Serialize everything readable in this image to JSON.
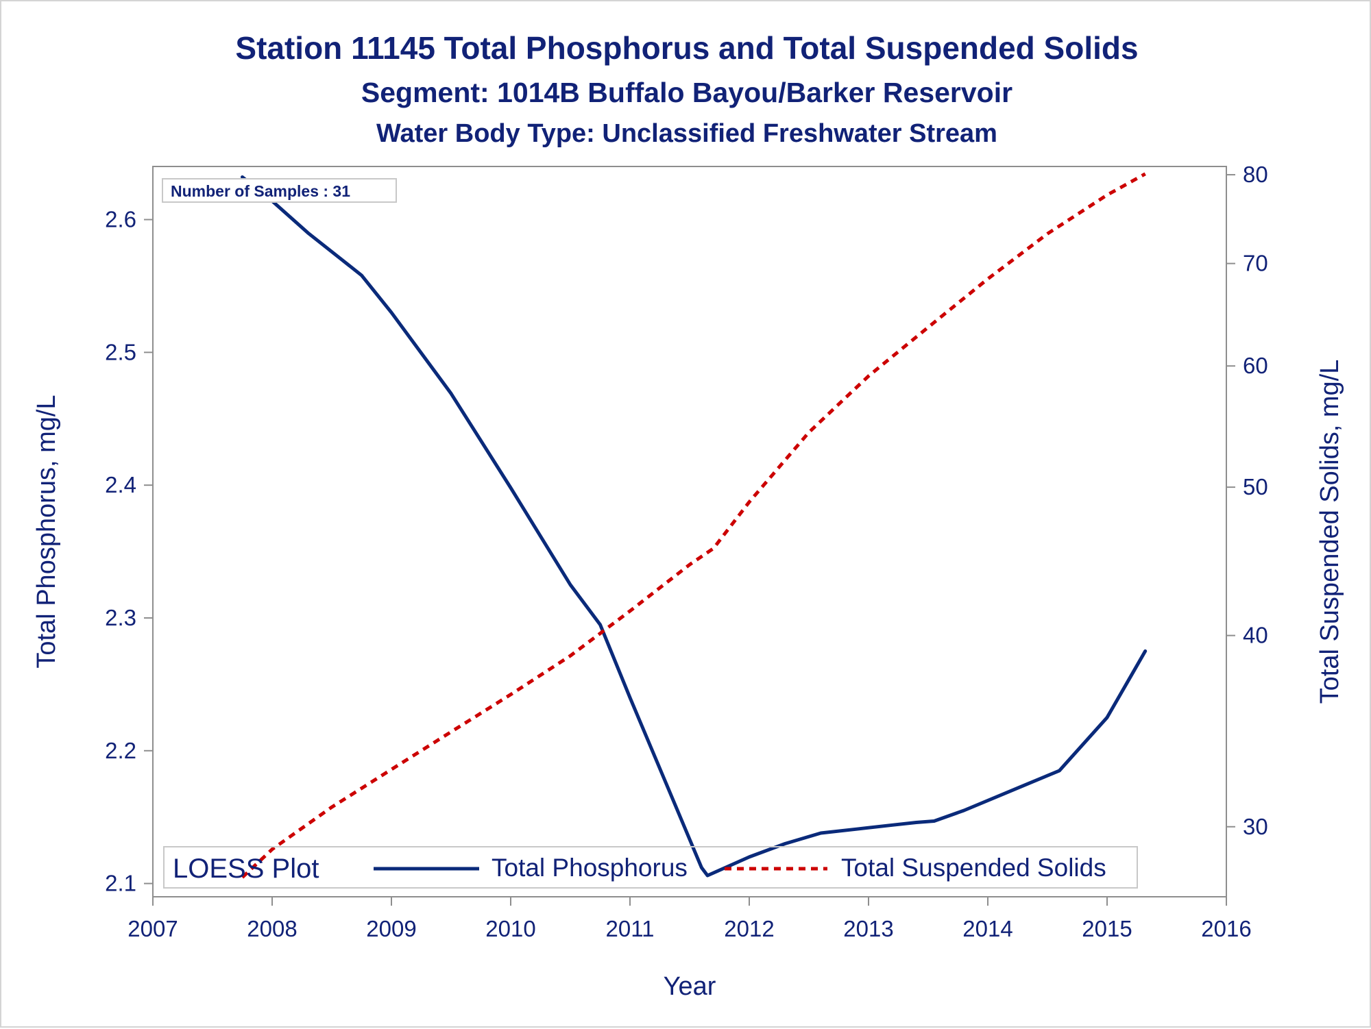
{
  "chart_data": {
    "type": "line",
    "title": "Station 11145  Total Phosphorus and Total Suspended Solids",
    "subtitle": "Segment: 1014B  Buffalo Bayou/Barker Reservoir",
    "subtitle2": "Water Body Type: Unclassified Freshwater Stream",
    "xlabel": "Year",
    "ylabel": "Total Phosphorus, mg/L",
    "y2label": "Total Suspended Solids, mg/L",
    "xlim": [
      2007,
      2016
    ],
    "ylim": [
      2.09,
      2.64
    ],
    "y2lim": [
      27,
      81
    ],
    "y2_scale": "log",
    "x_ticks": [
      "2007",
      "2008",
      "2009",
      "2010",
      "2011",
      "2012",
      "2013",
      "2014",
      "2015",
      "2016"
    ],
    "y_ticks": [
      "2.1",
      "2.2",
      "2.3",
      "2.4",
      "2.5",
      "2.6"
    ],
    "y2_ticks": [
      "30",
      "40",
      "50",
      "60",
      "70",
      "80"
    ],
    "annotation": "Number of Samples : 31",
    "legend": {
      "title": "LOESS Plot",
      "position": "bottom-inside",
      "entries": [
        "Total Phosphorus",
        "Total Suspended Solids"
      ]
    },
    "series": [
      {
        "name": "Total Phosphorus",
        "axis": "left",
        "color": "#0a2a7a",
        "style": "solid",
        "x": [
          2007.75,
          2008.0,
          2008.3,
          2008.75,
          2009.0,
          2009.5,
          2010.0,
          2010.5,
          2010.75,
          2011.0,
          2011.3,
          2011.6,
          2011.65,
          2012.0,
          2012.3,
          2012.6,
          2012.9,
          2013.2,
          2013.4,
          2013.55,
          2013.8,
          2014.2,
          2014.6,
          2014.65,
          2015.0,
          2015.32
        ],
        "values": [
          2.632,
          2.614,
          2.59,
          2.558,
          2.53,
          2.469,
          2.398,
          2.325,
          2.295,
          2.24,
          2.176,
          2.112,
          2.106,
          2.12,
          2.13,
          2.138,
          2.141,
          2.144,
          2.146,
          2.147,
          2.155,
          2.17,
          2.185,
          2.19,
          2.225,
          2.275
        ]
      },
      {
        "name": "Total Suspended Solids",
        "axis": "right",
        "color": "#cc0000",
        "style": "dashed",
        "x": [
          2007.75,
          2008.0,
          2008.5,
          2009.0,
          2009.5,
          2010.0,
          2010.5,
          2011.0,
          2011.5,
          2011.7,
          2012.0,
          2012.5,
          2013.0,
          2013.5,
          2014.0,
          2014.5,
          2015.0,
          2015.32
        ],
        "values": [
          27.8,
          29.0,
          30.9,
          32.7,
          34.6,
          36.6,
          38.8,
          41.5,
          44.5,
          45.6,
          48.9,
          54.3,
          59.1,
          63.6,
          68.4,
          73.2,
          77.6,
          80.1
        ]
      }
    ]
  }
}
